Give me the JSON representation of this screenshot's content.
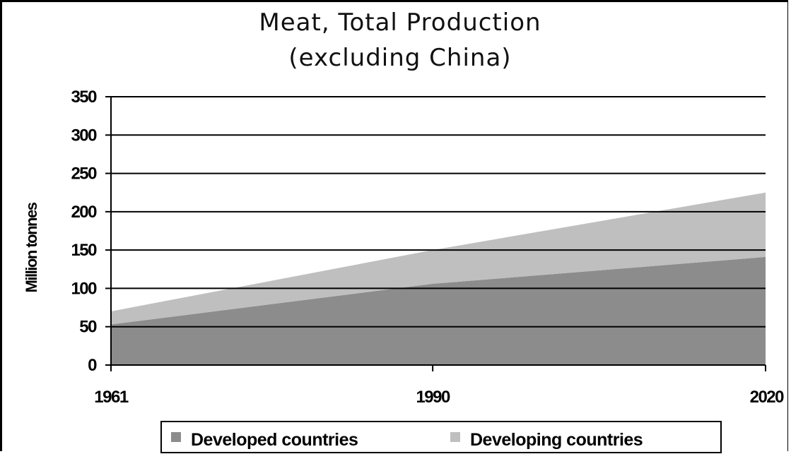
{
  "chart_data": {
    "type": "area",
    "stacked": true,
    "title": "Meat, Total Production",
    "subtitle": "(excluding China)",
    "ylabel": "Million tonnes",
    "xlabel": "",
    "x": [
      1961,
      1990,
      2020
    ],
    "x_tick_labels": [
      "1961",
      "1990",
      "2020"
    ],
    "ylim": [
      0,
      350
    ],
    "y_ticks": [
      0,
      50,
      100,
      150,
      200,
      250,
      300,
      350
    ],
    "grid": true,
    "legend_position": "bottom",
    "series": [
      {
        "name": "Developed countries",
        "values": [
          53,
          106,
          141
        ],
        "color": "#8c8c8c"
      },
      {
        "name": "Developing countries",
        "values": [
          17,
          44,
          84
        ],
        "color": "#bfbfbf"
      }
    ]
  }
}
